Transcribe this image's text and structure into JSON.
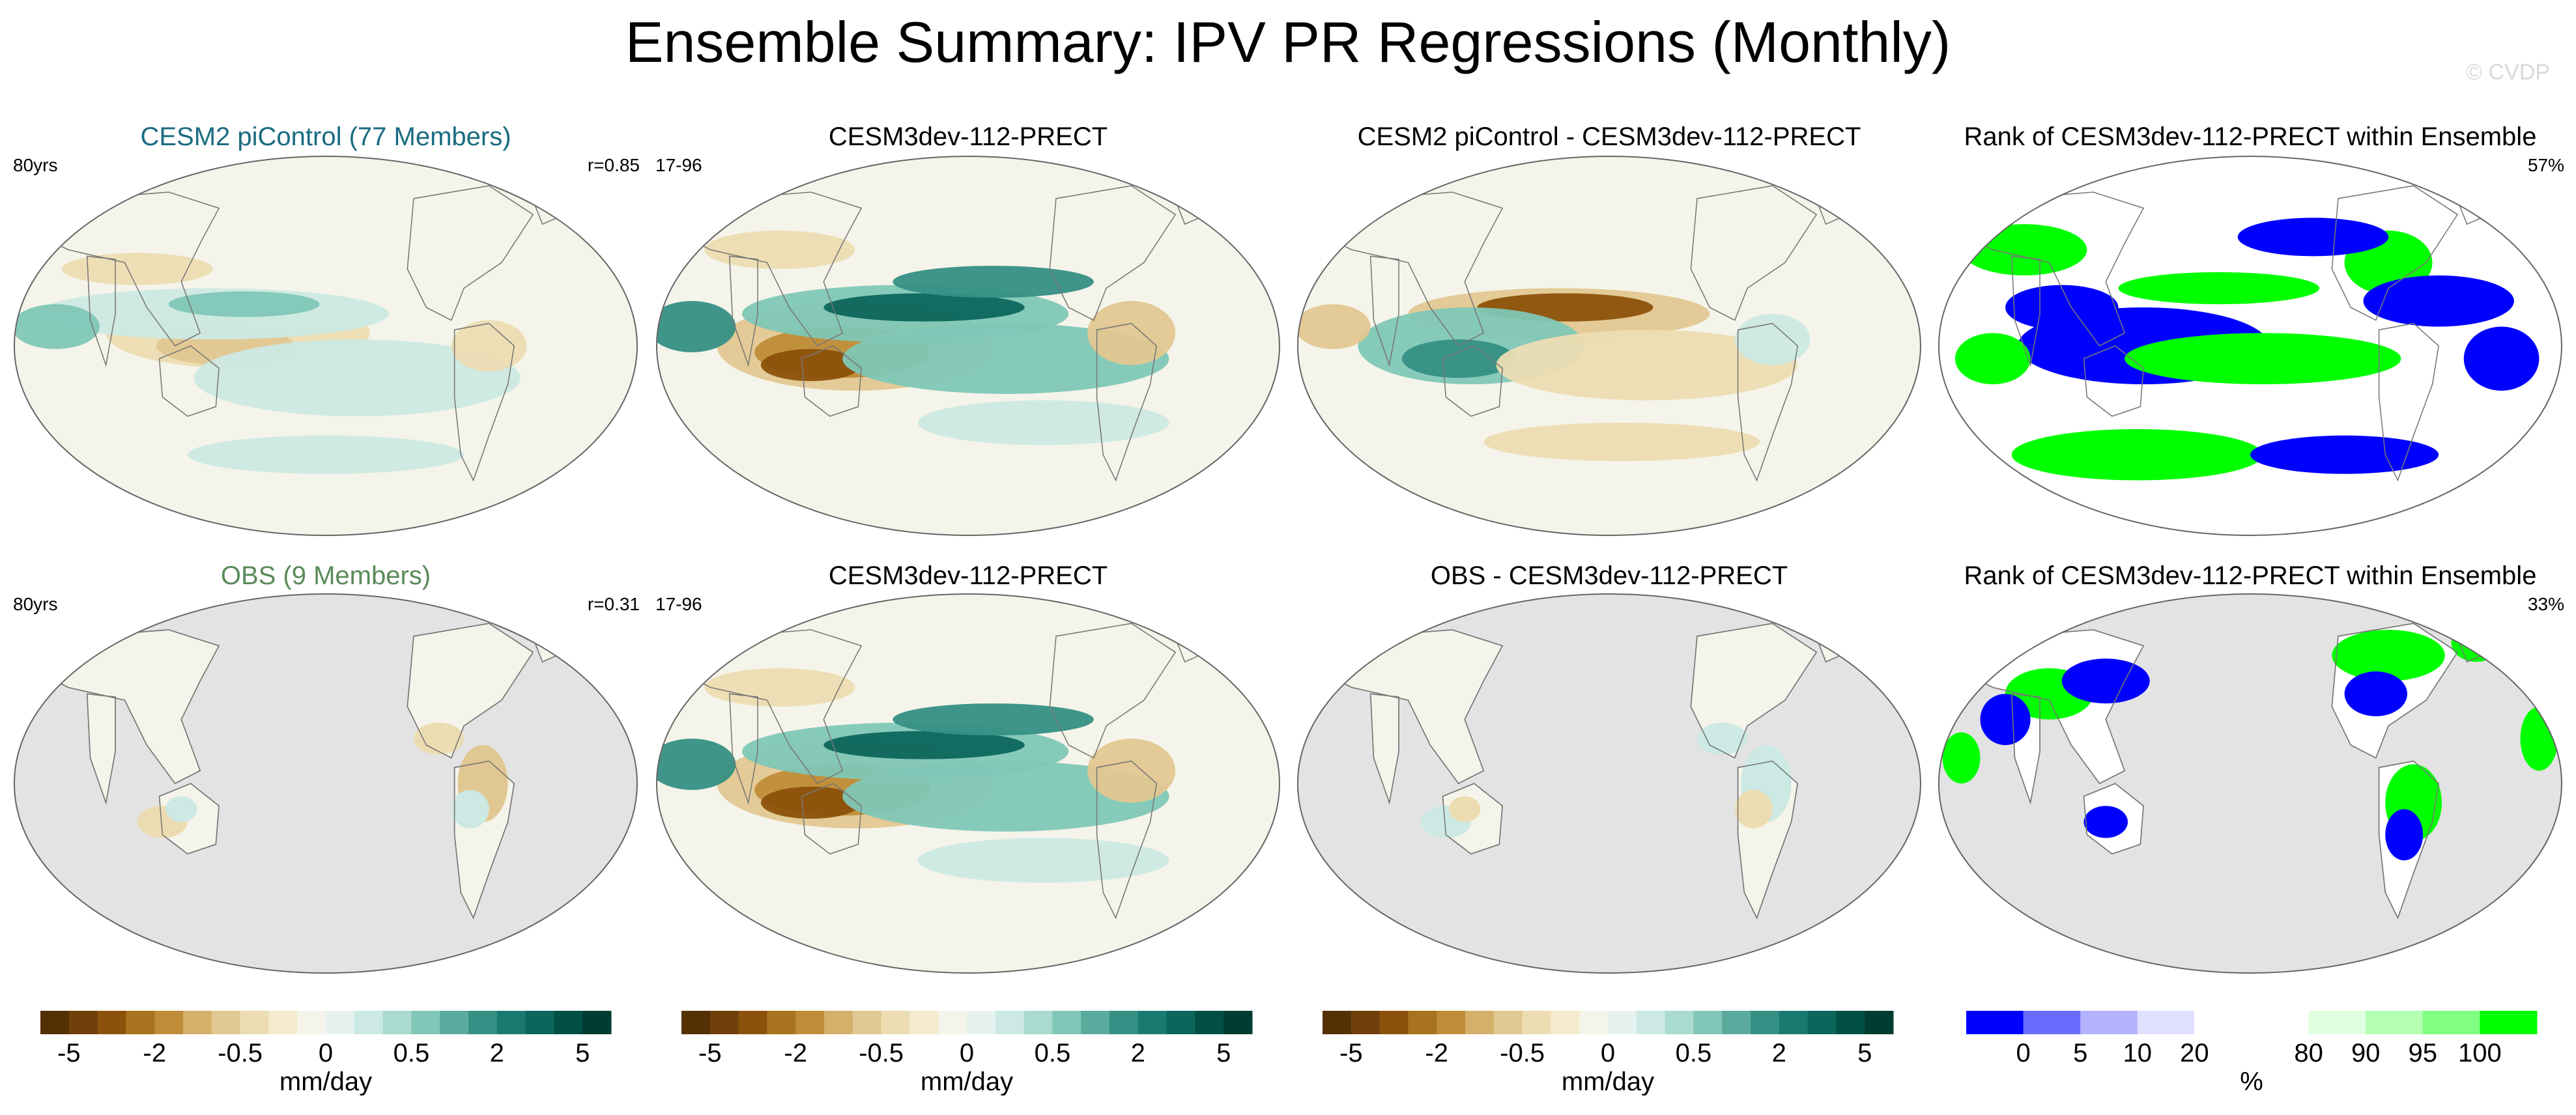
{
  "title": "Ensemble Summary: IPV PR Regressions (Monthly)",
  "watermark": "© CVDP",
  "colors": {
    "model_label": "#1a6b80",
    "obs_label": "#5a8a5a",
    "land_gray": "#e3e3e3",
    "rank_low": "#0000ff",
    "rank_high": "#00ff00"
  },
  "rows": [
    {
      "panels": [
        {
          "title": "CESM2 piControl (77 Members)",
          "left_label": "80yrs",
          "right_label": "r=0.85",
          "map": "ensemble-mean-regression-map",
          "title_color": "#1a6b80"
        },
        {
          "title": "CESM3dev-112-PRECT",
          "left_label": "17-96",
          "right_label": "",
          "map": "case-regression-map",
          "title_color": "#000000"
        },
        {
          "title": "CESM2 piControl - CESM3dev-112-PRECT",
          "left_label": "",
          "right_label": "",
          "map": "difference-map",
          "title_color": "#000000"
        },
        {
          "title": "Rank of CESM3dev-112-PRECT within Ensemble",
          "left_label": "",
          "right_label": "57%",
          "map": "rank-map",
          "title_color": "#000000"
        }
      ]
    },
    {
      "panels": [
        {
          "title": "OBS (9 Members)",
          "left_label": "80yrs",
          "right_label": "r=0.31",
          "map": "obs-regression-map",
          "title_color": "#5a8a5a"
        },
        {
          "title": "CESM3dev-112-PRECT",
          "left_label": "17-96",
          "right_label": "",
          "map": "case-regression-map",
          "title_color": "#000000"
        },
        {
          "title": "OBS - CESM3dev-112-PRECT",
          "left_label": "",
          "right_label": "",
          "map": "difference-map",
          "title_color": "#000000"
        },
        {
          "title": "Rank of CESM3dev-112-PRECT within Ensemble",
          "left_label": "",
          "right_label": "33%",
          "map": "rank-map",
          "title_color": "#000000"
        }
      ]
    }
  ],
  "colorbars": [
    {
      "unit": "mm/day",
      "colors": [
        "#543005",
        "#6f400b",
        "#8c510a",
        "#a8731e",
        "#bf8c38",
        "#d4b06a",
        "#e1c791",
        "#ecdcb2",
        "#f4ebcd",
        "#f5f4ea",
        "#e6f2ef",
        "#cce9e3",
        "#a9dbd0",
        "#80c7b7",
        "#5aab9e",
        "#358f84",
        "#1b7a6f",
        "#0d665c",
        "#014f45",
        "#003c30"
      ],
      "tick_labels": [
        "-5",
        "-2",
        "-0.5",
        "0",
        "0.5",
        "2",
        "5"
      ],
      "tick_edges": [
        1,
        4,
        7,
        10,
        13,
        16,
        19
      ]
    },
    {
      "unit": "mm/day",
      "colors": [
        "#543005",
        "#6f400b",
        "#8c510a",
        "#a8731e",
        "#bf8c38",
        "#d4b06a",
        "#e1c791",
        "#ecdcb2",
        "#f4ebcd",
        "#f5f4ea",
        "#e6f2ef",
        "#cce9e3",
        "#a9dbd0",
        "#80c7b7",
        "#5aab9e",
        "#358f84",
        "#1b7a6f",
        "#0d665c",
        "#014f45",
        "#003c30"
      ],
      "tick_labels": [
        "-5",
        "-2",
        "-0.5",
        "0",
        "0.5",
        "2",
        "5"
      ],
      "tick_edges": [
        1,
        4,
        7,
        10,
        13,
        16,
        19
      ]
    },
    {
      "unit": "mm/day",
      "colors": [
        "#543005",
        "#6f400b",
        "#8c510a",
        "#a8731e",
        "#bf8c38",
        "#d4b06a",
        "#e1c791",
        "#ecdcb2",
        "#f4ebcd",
        "#f5f4ea",
        "#e6f2ef",
        "#cce9e3",
        "#a9dbd0",
        "#80c7b7",
        "#5aab9e",
        "#358f84",
        "#1b7a6f",
        "#0d665c",
        "#014f45",
        "#003c30"
      ],
      "tick_labels": [
        "-5",
        "-2",
        "-0.5",
        "0",
        "0.5",
        "2",
        "5"
      ],
      "tick_edges": [
        1,
        4,
        7,
        10,
        13,
        16,
        19
      ]
    },
    {
      "unit": "%",
      "colors": [
        "#0000ff",
        "#6b6bff",
        "#b3b3ff",
        "#e0e0ff",
        "#ffffff",
        "#ffffff",
        "#e0ffe0",
        "#b3ffb3",
        "#80ff80",
        "#00ff00"
      ],
      "tick_labels": [
        "0",
        "5",
        "10",
        "20",
        "80",
        "90",
        "95",
        "100"
      ],
      "tick_edges": [
        1,
        2,
        3,
        4,
        6,
        7,
        8,
        9
      ]
    }
  ]
}
